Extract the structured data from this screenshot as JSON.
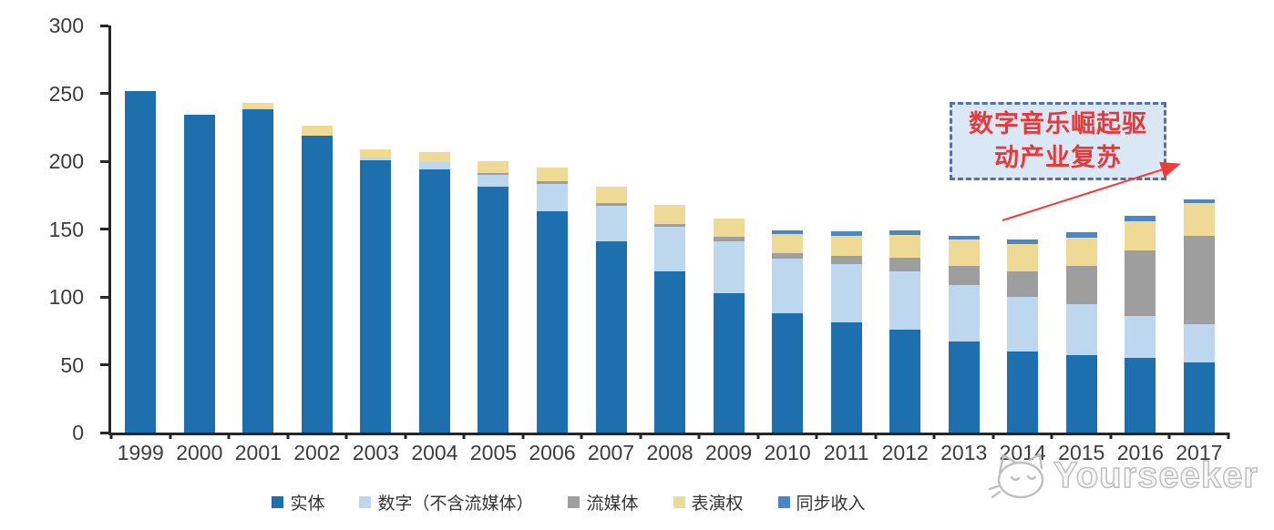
{
  "chart_data": {
    "type": "bar",
    "stacked": true,
    "title": "",
    "xlabel": "",
    "ylabel": "",
    "ylim": [
      0,
      300
    ],
    "y_ticks": [
      0,
      50,
      100,
      150,
      200,
      250,
      300
    ],
    "grid": false,
    "legend_position": "bottom",
    "categories": [
      "1999",
      "2000",
      "2001",
      "2002",
      "2003",
      "2004",
      "2005",
      "2006",
      "2007",
      "2008",
      "2009",
      "2010",
      "2011",
      "2012",
      "2013",
      "2014",
      "2015",
      "2016",
      "2017"
    ],
    "series": [
      {
        "key": "physical",
        "name": "实体",
        "color": "#1e6fad",
        "values": [
          252,
          234,
          238,
          219,
          201,
          194,
          181,
          163,
          141,
          119,
          103,
          88,
          81,
          76,
          67,
          60,
          57,
          55,
          52
        ]
      },
      {
        "key": "digital-ex-streaming",
        "name": "数字（不含流媒体）",
        "color": "#bdd7ee",
        "values": [
          0,
          0,
          0,
          0,
          2,
          5,
          9,
          20,
          26,
          33,
          38,
          40,
          43,
          43,
          42,
          40,
          38,
          31,
          28
        ]
      },
      {
        "key": "streaming",
        "name": "流媒体",
        "color": "#9e9e9e",
        "values": [
          0,
          0,
          0,
          0,
          0,
          0,
          1,
          2,
          2,
          2,
          3,
          4,
          6,
          10,
          14,
          19,
          28,
          48,
          65
        ]
      },
      {
        "key": "performance-rights",
        "name": "表演权",
        "color": "#eed995",
        "values": [
          0,
          0,
          5,
          7,
          6,
          8,
          9,
          10,
          12,
          14,
          14,
          14,
          15,
          17,
          19,
          20,
          21,
          22,
          24
        ]
      },
      {
        "key": "sync",
        "name": "同步收入",
        "color": "#4b86c5",
        "values": [
          0,
          0,
          0,
          0,
          0,
          0,
          0,
          0,
          0,
          0,
          0,
          3,
          3,
          3,
          3,
          3,
          4,
          4,
          3
        ]
      }
    ]
  },
  "annotation": {
    "line1": "数字音乐崛起驱",
    "line2": "动产业复苏",
    "text_color": "#e23b3b",
    "box_fill": "#dae7f5",
    "border_color": "#5272a3",
    "arrow_color": "#f23b34"
  },
  "watermark": {
    "text": "Yourseeker",
    "logo": "cat-outline",
    "color": "#bfbfbf"
  }
}
